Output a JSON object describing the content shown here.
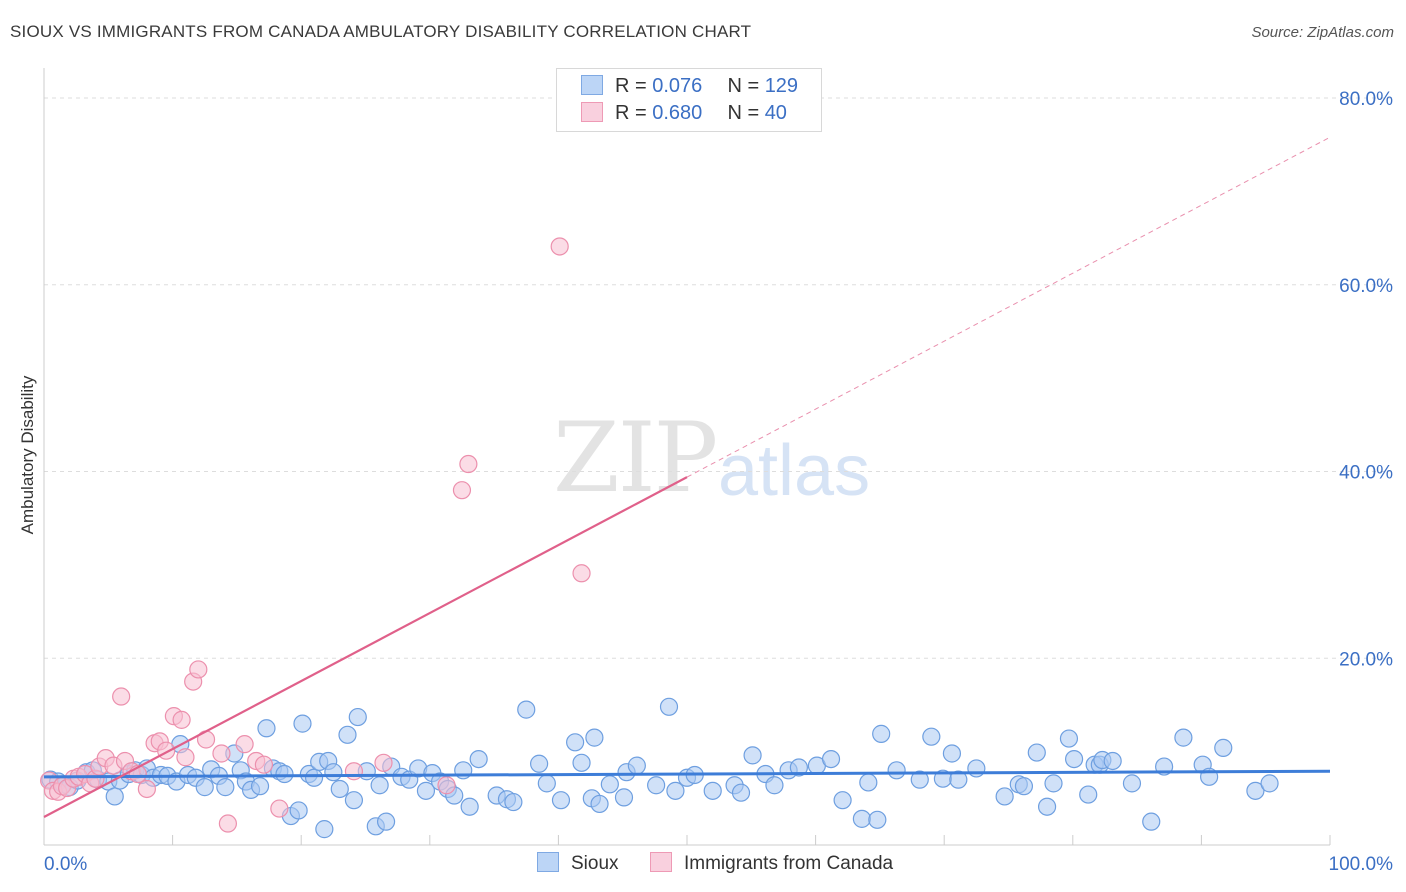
{
  "title": "SIOUX VS IMMIGRANTS FROM CANADA AMBULATORY DISABILITY CORRELATION CHART",
  "source": "Source: ZipAtlas.com",
  "watermark": {
    "zip": "ZIP",
    "atlas": "atlas"
  },
  "legend": {
    "rows": [
      {
        "r_label": "R =",
        "r_value": "0.076",
        "n_label": "N =",
        "n_value": "129"
      },
      {
        "r_label": "R =",
        "r_value": "0.680",
        "n_label": "N =",
        "n_value": "40"
      }
    ]
  },
  "colors": {
    "sioux_fill": "#a9c8f3",
    "sioux_stroke": "#6e9fe0",
    "sioux_line": "#3d7dd8",
    "canada_fill": "#f8c0d2",
    "canada_stroke": "#ec90ad",
    "canada_line": "#e0608a",
    "axis_text": "#3b6fc4",
    "grid": "#dddddd"
  },
  "chart_data": {
    "type": "scatter",
    "title": "SIOUX VS IMMIGRANTS FROM CANADA AMBULATORY DISABILITY CORRELATION CHART",
    "xlabel": "",
    "ylabel": "Ambulatory Disability",
    "xlim": [
      0,
      100
    ],
    "ylim": [
      0,
      82
    ],
    "x_tick_labels": [
      "0.0%",
      "100.0%"
    ],
    "y_ticks": [
      20,
      40,
      60,
      80
    ],
    "y_tick_labels": [
      "20.0%",
      "40.0%",
      "60.0%",
      "80.0%"
    ],
    "grid": true,
    "legend_position": "top-center",
    "series": [
      {
        "name": "Sioux",
        "r": 0.076,
        "n": 129,
        "trend": {
          "x": [
            0,
            100
          ],
          "y": [
            7.3,
            7.9
          ]
        },
        "points": [
          [
            0.5,
            7.0
          ],
          [
            1.1,
            6.8
          ],
          [
            1.5,
            6.5
          ],
          [
            2.0,
            6.2
          ],
          [
            2.6,
            6.9
          ],
          [
            3.3,
            7.8
          ],
          [
            3.8,
            8.0
          ],
          [
            4.2,
            7.0
          ],
          [
            5.0,
            6.8
          ],
          [
            5.5,
            5.2
          ],
          [
            5.9,
            6.9
          ],
          [
            6.6,
            7.6
          ],
          [
            7.1,
            8.0
          ],
          [
            7.6,
            7.5
          ],
          [
            8.0,
            8.2
          ],
          [
            8.5,
            7.2
          ],
          [
            9.1,
            7.5
          ],
          [
            9.6,
            7.4
          ],
          [
            10.3,
            6.8
          ],
          [
            10.6,
            10.8
          ],
          [
            11.2,
            7.5
          ],
          [
            11.8,
            7.2
          ],
          [
            12.5,
            6.2
          ],
          [
            13.0,
            8.1
          ],
          [
            13.6,
            7.4
          ],
          [
            14.1,
            6.2
          ],
          [
            14.8,
            9.8
          ],
          [
            15.3,
            8.0
          ],
          [
            15.7,
            6.8
          ],
          [
            16.1,
            5.9
          ],
          [
            16.8,
            6.3
          ],
          [
            17.3,
            12.5
          ],
          [
            17.8,
            8.2
          ],
          [
            18.3,
            7.9
          ],
          [
            18.7,
            7.6
          ],
          [
            19.2,
            3.1
          ],
          [
            19.8,
            3.7
          ],
          [
            20.1,
            13.0
          ],
          [
            20.6,
            7.6
          ],
          [
            21.0,
            7.2
          ],
          [
            21.4,
            8.9
          ],
          [
            21.8,
            1.7
          ],
          [
            22.1,
            9.0
          ],
          [
            22.5,
            7.8
          ],
          [
            23.0,
            6.0
          ],
          [
            23.6,
            11.8
          ],
          [
            24.1,
            4.8
          ],
          [
            24.4,
            13.7
          ],
          [
            25.1,
            7.9
          ],
          [
            25.8,
            2.0
          ],
          [
            26.1,
            6.4
          ],
          [
            26.6,
            2.5
          ],
          [
            27.0,
            8.4
          ],
          [
            27.8,
            7.3
          ],
          [
            28.4,
            7.0
          ],
          [
            29.1,
            8.2
          ],
          [
            29.7,
            5.8
          ],
          [
            30.2,
            7.7
          ],
          [
            30.8,
            6.8
          ],
          [
            31.4,
            6.0
          ],
          [
            31.9,
            5.3
          ],
          [
            32.6,
            8.0
          ],
          [
            33.1,
            4.1
          ],
          [
            33.8,
            9.2
          ],
          [
            35.2,
            5.3
          ],
          [
            36.0,
            4.9
          ],
          [
            36.5,
            4.6
          ],
          [
            37.5,
            14.5
          ],
          [
            38.5,
            8.7
          ],
          [
            39.1,
            6.6
          ],
          [
            40.2,
            4.8
          ],
          [
            41.3,
            11.0
          ],
          [
            41.8,
            8.8
          ],
          [
            42.6,
            5.0
          ],
          [
            42.8,
            11.5
          ],
          [
            43.2,
            4.4
          ],
          [
            44.0,
            6.5
          ],
          [
            45.1,
            5.1
          ],
          [
            45.3,
            7.8
          ],
          [
            46.1,
            8.5
          ],
          [
            47.6,
            6.4
          ],
          [
            48.6,
            14.8
          ],
          [
            49.1,
            5.8
          ],
          [
            50.0,
            7.2
          ],
          [
            50.6,
            7.5
          ],
          [
            52.0,
            5.8
          ],
          [
            53.7,
            6.4
          ],
          [
            54.2,
            5.6
          ],
          [
            55.1,
            9.6
          ],
          [
            56.1,
            7.6
          ],
          [
            56.8,
            6.4
          ],
          [
            57.9,
            8.0
          ],
          [
            58.7,
            8.3
          ],
          [
            60.1,
            8.5
          ],
          [
            61.2,
            9.2
          ],
          [
            62.1,
            4.8
          ],
          [
            63.6,
            2.8
          ],
          [
            64.1,
            6.7
          ],
          [
            64.8,
            2.7
          ],
          [
            65.1,
            11.9
          ],
          [
            66.3,
            8.0
          ],
          [
            68.1,
            7.0
          ],
          [
            69.0,
            11.6
          ],
          [
            69.9,
            7.1
          ],
          [
            70.6,
            9.8
          ],
          [
            71.1,
            7.0
          ],
          [
            72.5,
            8.2
          ],
          [
            74.7,
            5.2
          ],
          [
            75.8,
            6.5
          ],
          [
            76.2,
            6.3
          ],
          [
            77.2,
            9.9
          ],
          [
            78.0,
            4.1
          ],
          [
            78.5,
            6.6
          ],
          [
            79.7,
            11.4
          ],
          [
            80.1,
            9.2
          ],
          [
            81.2,
            5.4
          ],
          [
            81.7,
            8.6
          ],
          [
            82.1,
            8.6
          ],
          [
            82.3,
            9.1
          ],
          [
            83.1,
            9.0
          ],
          [
            84.6,
            6.6
          ],
          [
            86.1,
            2.5
          ],
          [
            87.1,
            8.4
          ],
          [
            88.6,
            11.5
          ],
          [
            90.1,
            8.6
          ],
          [
            90.6,
            7.3
          ],
          [
            91.7,
            10.4
          ],
          [
            94.2,
            5.8
          ],
          [
            95.3,
            6.6
          ]
        ]
      },
      {
        "name": "Immigrants from Canada",
        "r": 0.68,
        "n": 40,
        "trend": {
          "x": [
            0,
            50
          ],
          "y": [
            3.0,
            39.4
          ]
        },
        "trend_extended": {
          "x": [
            50,
            100
          ],
          "y": [
            39.4,
            75.8
          ]
        },
        "points": [
          [
            0.4,
            6.9
          ],
          [
            0.7,
            5.8
          ],
          [
            1.1,
            5.7
          ],
          [
            1.4,
            6.3
          ],
          [
            1.8,
            6.1
          ],
          [
            2.3,
            7.1
          ],
          [
            2.7,
            7.3
          ],
          [
            3.2,
            7.6
          ],
          [
            3.6,
            6.6
          ],
          [
            4.0,
            7.1
          ],
          [
            4.3,
            8.4
          ],
          [
            4.8,
            9.3
          ],
          [
            5.4,
            8.5
          ],
          [
            6.0,
            15.9
          ],
          [
            6.3,
            9.0
          ],
          [
            6.8,
            7.9
          ],
          [
            7.3,
            7.6
          ],
          [
            8.0,
            6.0
          ],
          [
            8.6,
            10.9
          ],
          [
            9.0,
            11.1
          ],
          [
            9.5,
            10.1
          ],
          [
            10.1,
            13.8
          ],
          [
            10.7,
            13.4
          ],
          [
            11.0,
            9.4
          ],
          [
            11.6,
            17.5
          ],
          [
            12.0,
            18.8
          ],
          [
            12.6,
            11.3
          ],
          [
            13.8,
            9.8
          ],
          [
            14.3,
            2.3
          ],
          [
            15.6,
            10.8
          ],
          [
            16.5,
            9.0
          ],
          [
            17.1,
            8.6
          ],
          [
            18.3,
            3.9
          ],
          [
            24.1,
            7.9
          ],
          [
            26.4,
            8.8
          ],
          [
            31.3,
            6.4
          ],
          [
            32.5,
            38.0
          ],
          [
            33.0,
            40.8
          ],
          [
            40.1,
            64.1
          ],
          [
            41.8,
            29.1
          ]
        ]
      }
    ]
  },
  "bottom_legend": {
    "sioux": "Sioux",
    "canada": "Immigrants from Canada"
  }
}
